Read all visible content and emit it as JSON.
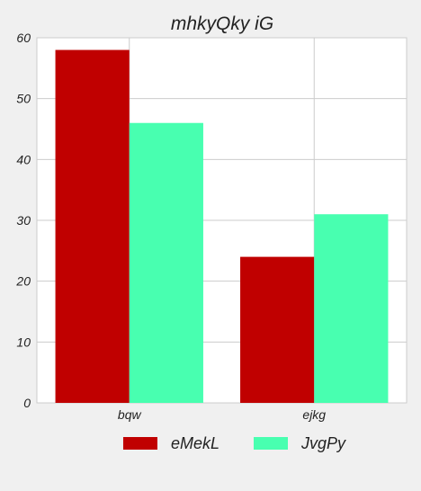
{
  "chart_data": {
    "type": "bar",
    "title": "mhkyQky iG",
    "xlabel": "",
    "ylabel": "",
    "categories": [
      "bqw",
      "ejkg"
    ],
    "series": [
      {
        "name": "eMekL",
        "values": [
          58,
          24
        ],
        "color": "#c00000"
      },
      {
        "name": "JvgPy",
        "values": [
          46,
          31
        ],
        "color": "#48ffb0"
      }
    ],
    "ylim": [
      0,
      60
    ],
    "yticks": [
      0,
      10,
      20,
      30,
      40,
      50,
      60
    ],
    "grid": true,
    "legend_position": "bottom-center",
    "plot_background": "#ffffff",
    "grid_color": "#cccccc"
  }
}
